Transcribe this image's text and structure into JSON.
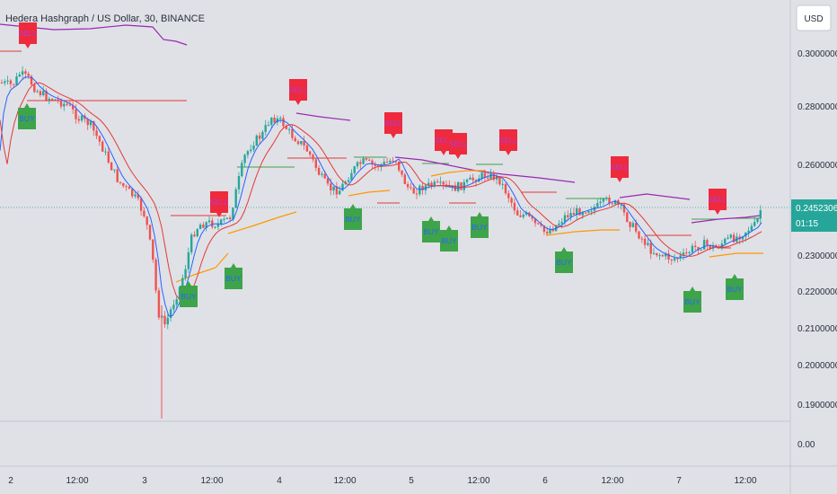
{
  "header": {
    "title": "Hedera Hashgraph / US Dollar, 30, BINANCE"
  },
  "currency_button": {
    "label": "USD"
  },
  "price_tag": {
    "price": "0.24523061",
    "countdown": "01:15"
  },
  "colors": {
    "background": "#dfe1e7",
    "up": "#26a69a",
    "down": "#ef5350",
    "fast_ma": "#2962ff",
    "slow_ma": "#e53935",
    "upper_band": "#9c27b0",
    "lower_band": "#ff9800",
    "buy": "#3ea449",
    "sell": "#ee2a3c",
    "level_red": "#e53935",
    "level_green": "#43a047"
  },
  "chart_data": {
    "type": "candlestick",
    "title": "Hedera Hashgraph / US Dollar, 30, BINANCE",
    "y_ticks": [
      "0.30000000",
      "0.28000000",
      "0.26000000",
      "0.23000000",
      "0.22000000",
      "0.21000000",
      "0.20000000",
      "0.19000000",
      "0.00"
    ],
    "x_ticks": [
      "2",
      "12:00",
      "3",
      "12:00",
      "4",
      "12:00",
      "5",
      "12:00",
      "6",
      "12:00",
      "7",
      "12:00"
    ],
    "last_price": 0.24523061,
    "signals": [
      {
        "label": "BUY",
        "type": "buy"
      },
      {
        "label": "BUY",
        "type": "buy"
      },
      {
        "label": "BUY",
        "type": "buy"
      },
      {
        "label": "BUY",
        "type": "buy"
      },
      {
        "label": "BUY",
        "type": "buy"
      },
      {
        "label": "BUY",
        "type": "buy"
      },
      {
        "label": "BUY",
        "type": "buy"
      },
      {
        "label": "BUY",
        "type": "buy"
      },
      {
        "label": "BUY",
        "type": "buy"
      },
      {
        "label": "BUY",
        "type": "buy"
      },
      {
        "label": "SELL",
        "type": "sell"
      },
      {
        "label": "SELL",
        "type": "sell"
      },
      {
        "label": "SELL",
        "type": "sell"
      },
      {
        "label": "SELL",
        "type": "sell"
      },
      {
        "label": "SELL",
        "type": "sell"
      },
      {
        "label": "SELL",
        "type": "sell"
      },
      {
        "label": "SELL",
        "type": "sell"
      },
      {
        "label": "SELL",
        "type": "sell"
      },
      {
        "label": "SELL",
        "type": "sell"
      }
    ]
  }
}
